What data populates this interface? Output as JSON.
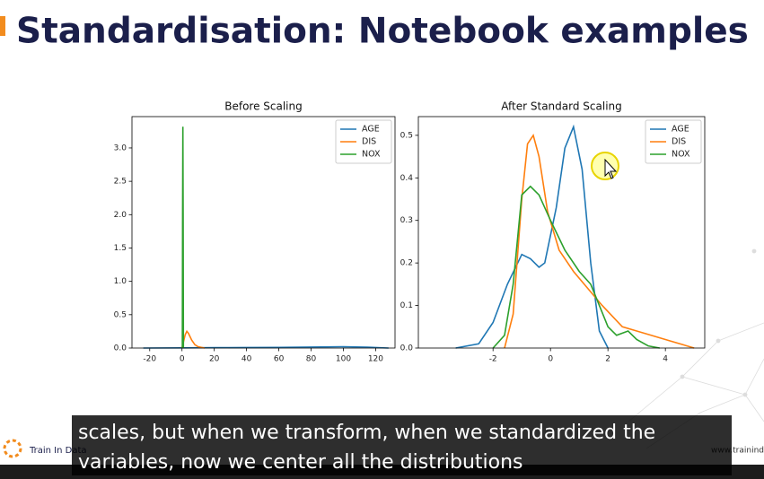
{
  "slide_title": "Standardisation: Notebook examples",
  "chart_data": [
    {
      "type": "line",
      "title": "Before Scaling",
      "legend": "upper right",
      "grid": false,
      "xlim": [
        -31,
        132
      ],
      "ylim": [
        0,
        3.47
      ],
      "xticks": [
        -20,
        0,
        20,
        40,
        60,
        80,
        100,
        120
      ],
      "yticks": [
        {
          "value": 0,
          "label": "0.0"
        },
        {
          "value": 0.5,
          "label": "0.5"
        },
        {
          "value": 1,
          "label": "1.0"
        },
        {
          "value": 1.5,
          "label": "1.5"
        },
        {
          "value": 2,
          "label": "2.0"
        },
        {
          "value": 2.5,
          "label": "2.5"
        },
        {
          "value": 3,
          "label": "3.0"
        }
      ],
      "series": [
        {
          "name": "AGE",
          "color": "#1f77b4",
          "x": [
            -24,
            0,
            20,
            40,
            60,
            80,
            100,
            115,
            128
          ],
          "values": [
            0,
            0.003,
            0.006,
            0.008,
            0.01,
            0.015,
            0.02,
            0.012,
            0
          ]
        },
        {
          "name": "DIS",
          "color": "#ff7f0e",
          "x": [
            0,
            1,
            2,
            3,
            4,
            6,
            8,
            10,
            14
          ],
          "values": [
            0,
            0.1,
            0.2,
            0.25,
            0.22,
            0.12,
            0.05,
            0.02,
            0
          ]
        },
        {
          "name": "NOX",
          "color": "#2ca02c",
          "x": [
            0.2,
            0.4,
            0.55,
            0.7,
            0.9
          ],
          "values": [
            0,
            2,
            3.32,
            2,
            0
          ]
        }
      ]
    },
    {
      "type": "line",
      "title": "After Standard Scaling",
      "legend": "upper right",
      "grid": false,
      "xlim": [
        -4.6,
        5.37
      ],
      "ylim": [
        0,
        0.544
      ],
      "xticks": [
        -2,
        0,
        2,
        4
      ],
      "yticks": [
        {
          "value": 0,
          "label": "0.0"
        },
        0.1,
        0.2,
        0.3,
        0.4,
        0.5
      ],
      "series": [
        {
          "name": "AGE",
          "color": "#1f77b4",
          "x": [
            -3.3,
            -2.5,
            -2,
            -1.5,
            -1,
            -0.7,
            -0.4,
            -0.2,
            0.2,
            0.5,
            0.8,
            1.1,
            1.4,
            1.7,
            2.0
          ],
          "values": [
            0,
            0.01,
            0.06,
            0.15,
            0.22,
            0.21,
            0.19,
            0.2,
            0.33,
            0.47,
            0.52,
            0.42,
            0.2,
            0.04,
            0
          ]
        },
        {
          "name": "DIS",
          "color": "#ff7f0e",
          "x": [
            -1.6,
            -1.3,
            -1,
            -0.8,
            -0.6,
            -0.4,
            -0.1,
            0.3,
            0.8,
            1.3,
            1.8,
            2.5,
            3,
            4,
            5
          ],
          "values": [
            0,
            0.08,
            0.35,
            0.48,
            0.5,
            0.45,
            0.32,
            0.23,
            0.18,
            0.14,
            0.1,
            0.05,
            0.04,
            0.02,
            0
          ]
        },
        {
          "name": "NOX",
          "color": "#2ca02c",
          "x": [
            -2,
            -1.6,
            -1.3,
            -1,
            -0.7,
            -0.4,
            0,
            0.5,
            1,
            1.4,
            1.7,
            2,
            2.3,
            2.7,
            3,
            3.4,
            3.8
          ],
          "values": [
            0,
            0.03,
            0.15,
            0.36,
            0.38,
            0.36,
            0.3,
            0.23,
            0.18,
            0.15,
            0.1,
            0.05,
            0.03,
            0.04,
            0.02,
            0.005,
            0
          ]
        }
      ]
    }
  ],
  "subtitle_lines": [
    "scales, but when we transform, when we standardized the",
    "variables, now we center all the distributions"
  ],
  "logo": "Train In Data",
  "url": "www.trainind"
}
